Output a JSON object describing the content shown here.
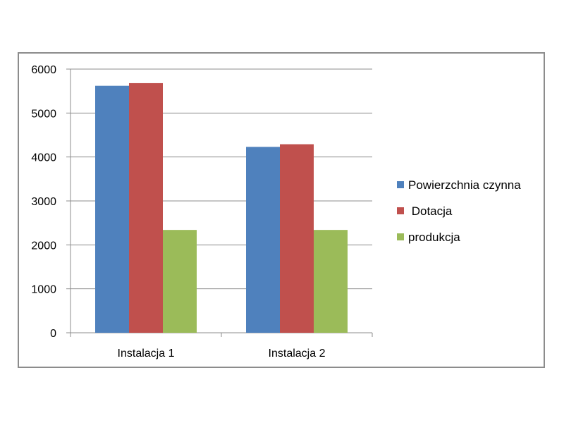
{
  "chart_data": {
    "type": "bar",
    "categories": [
      "Instalacja 1",
      "Instalacja 2"
    ],
    "series": [
      {
        "name": "Powierzchnia czynna",
        "values": [
          5620,
          4230
        ],
        "color": "#4f81bd"
      },
      {
        "name": " Dotacja",
        "values": [
          5680,
          4290
        ],
        "color": "#c0504d"
      },
      {
        "name": "produkcja",
        "values": [
          2340,
          2340
        ],
        "color": "#9bbb59"
      }
    ],
    "y_ticks": [
      "0",
      "1000",
      "2000",
      "3000",
      "4000",
      "5000",
      "6000"
    ],
    "ylim": [
      0,
      6000
    ],
    "grid": true,
    "legend_position": "right"
  }
}
